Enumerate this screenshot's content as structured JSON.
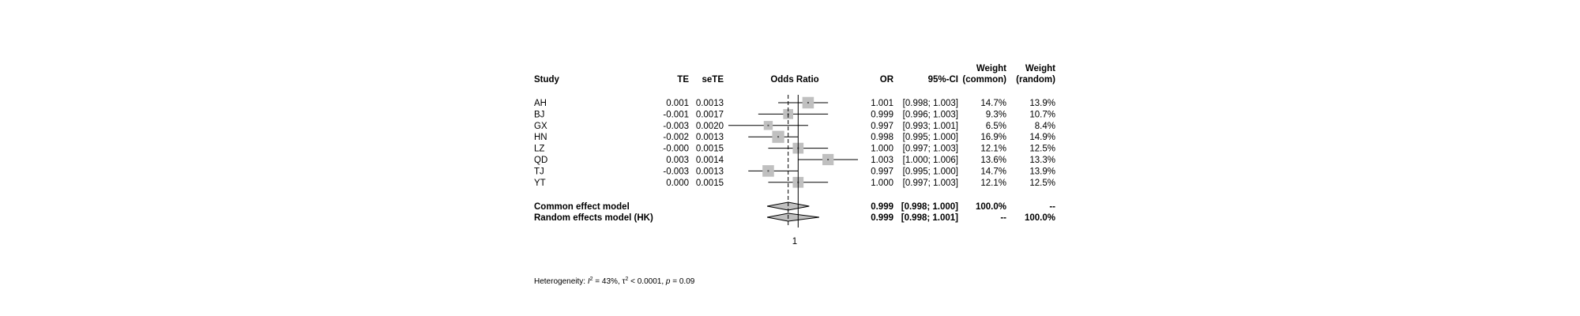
{
  "chart_data": {
    "type": "forest",
    "headers": {
      "study": "Study",
      "te": "TE",
      "sete": "seTE",
      "effect": "Odds Ratio",
      "or": "OR",
      "ci": "95%-CI",
      "weight_common": [
        "Weight",
        "(common)"
      ],
      "weight_random": [
        "Weight",
        "(random)"
      ]
    },
    "studies": [
      {
        "study": "AH",
        "te": "0.001",
        "sete": "0.0013",
        "or": 1.001,
        "lower": 0.998,
        "upper": 1.003,
        "or_text": "1.001",
        "ci_text": "[0.998; 1.003]",
        "w_common": "14.7%",
        "w_random": "13.9%",
        "weight": 14.7
      },
      {
        "study": "BJ",
        "te": "-0.001",
        "sete": "0.0017",
        "or": 0.999,
        "lower": 0.996,
        "upper": 1.003,
        "or_text": "0.999",
        "ci_text": "[0.996; 1.003]",
        "w_common": "9.3%",
        "w_random": "10.7%",
        "weight": 9.3
      },
      {
        "study": "GX",
        "te": "-0.003",
        "sete": "0.0020",
        "or": 0.997,
        "lower": 0.993,
        "upper": 1.001,
        "or_text": "0.997",
        "ci_text": "[0.993; 1.001]",
        "w_common": "6.5%",
        "w_random": "8.4%",
        "weight": 6.5
      },
      {
        "study": "HN",
        "te": "-0.002",
        "sete": "0.0013",
        "or": 0.998,
        "lower": 0.995,
        "upper": 1.0,
        "or_text": "0.998",
        "ci_text": "[0.995; 1.000]",
        "w_common": "16.9%",
        "w_random": "14.9%",
        "weight": 16.9
      },
      {
        "study": "LZ",
        "te": "-0.000",
        "sete": "0.0015",
        "or": 1.0,
        "lower": 0.997,
        "upper": 1.003,
        "or_text": "1.000",
        "ci_text": "[0.997; 1.003]",
        "w_common": "12.1%",
        "w_random": "12.5%",
        "weight": 12.1
      },
      {
        "study": "QD",
        "te": "0.003",
        "sete": "0.0014",
        "or": 1.003,
        "lower": 1.0,
        "upper": 1.006,
        "or_text": "1.003",
        "ci_text": "[1.000; 1.006]",
        "w_common": "13.6%",
        "w_random": "13.3%",
        "weight": 13.6
      },
      {
        "study": "TJ",
        "te": "-0.003",
        "sete": "0.0013",
        "or": 0.997,
        "lower": 0.995,
        "upper": 1.0,
        "or_text": "0.997",
        "ci_text": "[0.995; 1.000]",
        "w_common": "14.7%",
        "w_random": "13.9%",
        "weight": 14.7
      },
      {
        "study": "YT",
        "te": "0.000",
        "sete": "0.0015",
        "or": 1.0,
        "lower": 0.997,
        "upper": 1.003,
        "or_text": "1.000",
        "ci_text": "[0.997; 1.003]",
        "w_common": "12.1%",
        "w_random": "12.5%",
        "weight": 12.1
      }
    ],
    "pooled": [
      {
        "model": "Common effect model",
        "or": 0.999,
        "lower": 0.998,
        "upper": 1.0,
        "or_text": "0.999",
        "ci_text": "[0.998; 1.000]",
        "w_common": "100.0%",
        "w_random": "--"
      },
      {
        "model": "Random effects model (HK)",
        "or": 0.999,
        "lower": 0.998,
        "upper": 1.001,
        "or_text": "0.999",
        "ci_text": "[0.998; 1.001]",
        "w_common": "--",
        "w_random": "100.0%"
      }
    ],
    "reference_line": 1,
    "xlim": [
      0.993,
      1.006
    ],
    "axis_tick_label": "1",
    "heterogeneity": {
      "prefix": "Heterogeneity: ",
      "i2": "I",
      "i2_value": " = 43%, ",
      "tau2": "τ",
      "tau2_value": " < 0.0001, ",
      "p": "p",
      "p_value": " = 0.09"
    }
  }
}
